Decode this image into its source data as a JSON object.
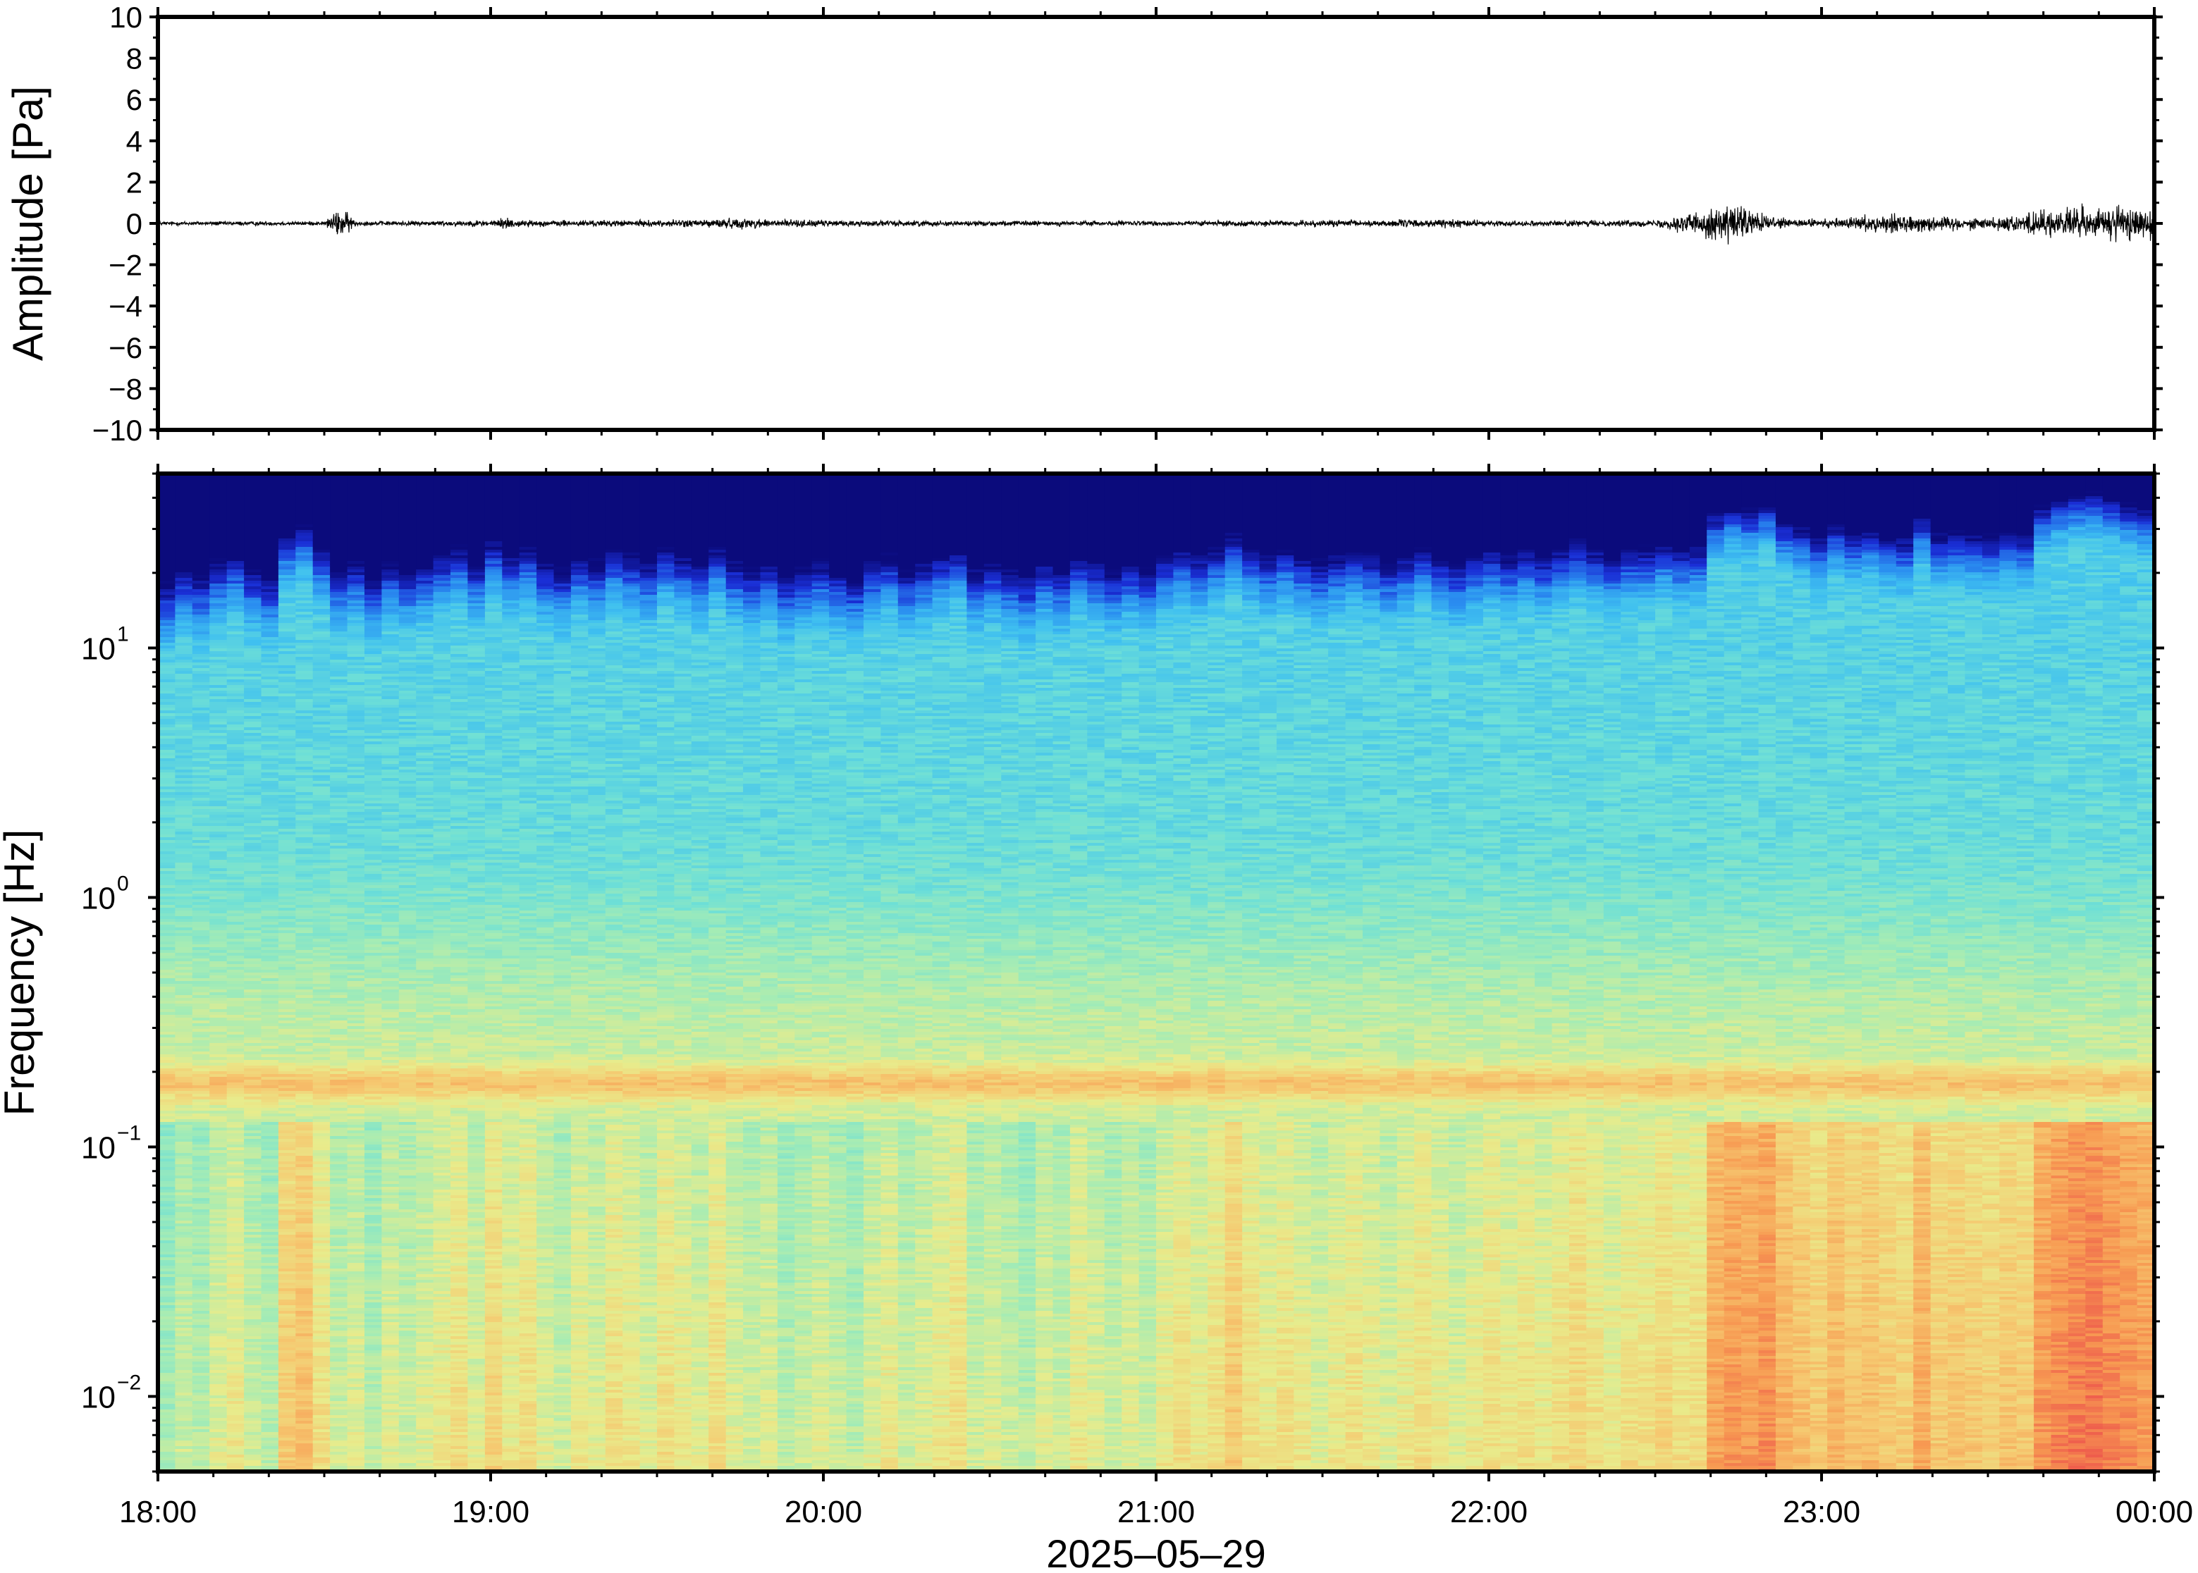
{
  "chart_data": [
    {
      "type": "line",
      "panel": "waveform",
      "ylabel": "Amplitude [Pa]",
      "ylim": [
        -10,
        10
      ],
      "yticks": [
        10,
        8,
        6,
        4,
        2,
        0,
        -2,
        -4,
        -6,
        -8,
        -10
      ],
      "ytick_labels": [
        "10",
        "8",
        "6",
        "4",
        "2",
        "0",
        "−2",
        "−4",
        "−6",
        "−8",
        "−10"
      ],
      "xlim": [
        "18:00",
        "00:00"
      ],
      "series": [
        {
          "color": "#000000",
          "envelope_hours": [
            0.0,
            0.5,
            0.55,
            0.6,
            1.0,
            1.05,
            1.1,
            1.5,
            1.75,
            2.0,
            2.5,
            3.0,
            3.5,
            3.9,
            4.0,
            4.5,
            4.6,
            4.75,
            4.85,
            5.0,
            5.2,
            5.5,
            5.6,
            5.8,
            5.9,
            6.0
          ],
          "envelope_amplitude_pa": [
            0.2,
            0.2,
            1.5,
            0.2,
            0.3,
            0.6,
            0.3,
            0.3,
            0.5,
            0.3,
            0.25,
            0.25,
            0.3,
            0.4,
            0.25,
            0.3,
            1.0,
            2.0,
            0.5,
            0.4,
            0.9,
            0.5,
            1.0,
            1.6,
            1.7,
            1.4
          ]
        }
      ]
    },
    {
      "type": "heatmap",
      "panel": "spectrogram",
      "ylabel": "Frequency [Hz]",
      "xlabel": "2025–05–29",
      "yscale": "log",
      "ylim": [
        0.005,
        50
      ],
      "yticks": [
        0.01,
        0.1,
        1,
        10
      ],
      "ytick_labels": [
        {
          "base": "10",
          "exp": "−2"
        },
        {
          "base": "10",
          "exp": "−1"
        },
        {
          "base": "10",
          "exp": "0"
        },
        {
          "base": "10",
          "exp": "1"
        }
      ],
      "xlim": [
        "18:00",
        "00:00"
      ],
      "xtick_labels": [
        "18:00",
        "19:00",
        "20:00",
        "21:00",
        "22:00",
        "23:00",
        "00:00"
      ],
      "colormap": [
        "#0b0b7c",
        "#1a2fd6",
        "#2a8ef0",
        "#3fc0f0",
        "#6fe0d6",
        "#a6ecb4",
        "#e8ec8c",
        "#f6c870",
        "#f79a52",
        "#ee5a4c",
        "#f6909a"
      ],
      "notes_bands": {
        "microbarom_peak_hz": 0.18
      },
      "column_activity": [
        0.35,
        0.45,
        0.4,
        0.5,
        0.55,
        0.45,
        0.4,
        0.7,
        0.75,
        0.6,
        0.45,
        0.5,
        0.4,
        0.5,
        0.45,
        0.5,
        0.55,
        0.6,
        0.5,
        0.65,
        0.55,
        0.6,
        0.5,
        0.45,
        0.55,
        0.5,
        0.6,
        0.55,
        0.5,
        0.6,
        0.55,
        0.5,
        0.6,
        0.5,
        0.45,
        0.5,
        0.4,
        0.45,
        0.5,
        0.45,
        0.4,
        0.5,
        0.55,
        0.45,
        0.5,
        0.55,
        0.6,
        0.45,
        0.5,
        0.45,
        0.4,
        0.5,
        0.45,
        0.55,
        0.5,
        0.45,
        0.5,
        0.45,
        0.55,
        0.6,
        0.55,
        0.6,
        0.7,
        0.6,
        0.55,
        0.6,
        0.55,
        0.5,
        0.55,
        0.6,
        0.55,
        0.5,
        0.55,
        0.6,
        0.55,
        0.5,
        0.55,
        0.6,
        0.55,
        0.6,
        0.55,
        0.6,
        0.65,
        0.6,
        0.55,
        0.6,
        0.6,
        0.65,
        0.6,
        0.62,
        0.85,
        0.9,
        0.88,
        0.92,
        0.8,
        0.75,
        0.7,
        0.78,
        0.72,
        0.75,
        0.7,
        0.68,
        0.82,
        0.7,
        0.72,
        0.7,
        0.68,
        0.72,
        0.7,
        0.9,
        0.95,
        0.98,
        1.0,
        0.96,
        0.92,
        0.88
      ]
    }
  ]
}
